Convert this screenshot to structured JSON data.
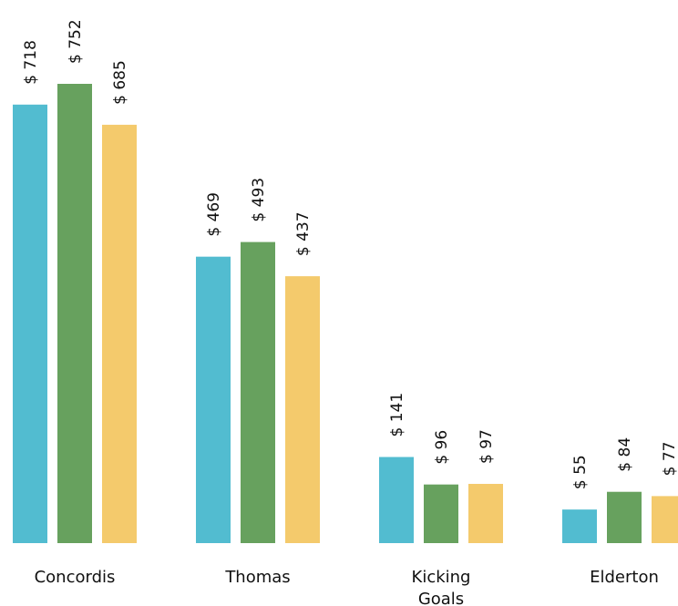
{
  "chart_data": {
    "type": "bar",
    "title": "",
    "xlabel": "",
    "ylabel": "",
    "ylim": [
      0,
      752
    ],
    "grid": false,
    "legend": "none",
    "value_prefix": "$ ",
    "categories": [
      [
        "Concordis"
      ],
      [
        "Thomas"
      ],
      [
        "Kicking",
        "Goals"
      ],
      [
        "Elderton"
      ]
    ],
    "series": [
      {
        "color": "#52bcd0",
        "values": [
          718,
          469,
          141,
          55
        ]
      },
      {
        "color": "#67a15e",
        "values": [
          752,
          493,
          96,
          84
        ]
      },
      {
        "color": "#f4ca6c",
        "values": [
          685,
          437,
          97,
          77
        ]
      }
    ]
  }
}
